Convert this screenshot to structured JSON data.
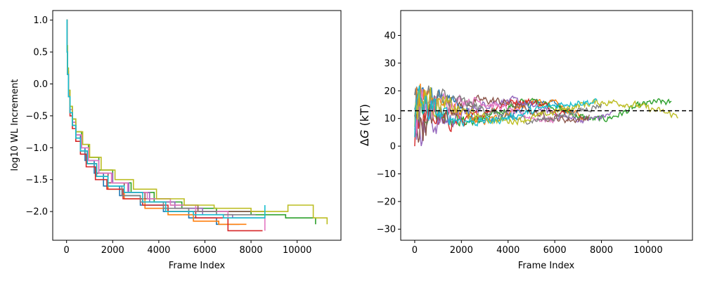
{
  "colors": [
    "#1f77b4",
    "#ff7f0e",
    "#2ca02c",
    "#d62728",
    "#9467bd",
    "#8c564b",
    "#e377c2",
    "#7f7f7f",
    "#bcbd22",
    "#17becf"
  ],
  "chart_data": [
    {
      "type": "line",
      "xlabel": "Frame Index",
      "ylabel": "log10 WL Increment",
      "xlim": [
        -600,
        11900
      ],
      "ylim": [
        -2.45,
        1.15
      ],
      "xticks": [
        0,
        2000,
        4000,
        6000,
        8000,
        10000
      ],
      "xtick_labels": [
        "0",
        "2000",
        "4000",
        "6000",
        "8000",
        "10000"
      ],
      "yticks": [
        1.0,
        0.5,
        0.0,
        -0.5,
        -1.0,
        -1.5,
        -2.0
      ],
      "ytick_labels": [
        "1.0",
        "0.5",
        "0.0",
        "−0.5",
        "−1.0",
        "−1.5",
        "−2.0"
      ],
      "series": [
        {
          "x": [
            0,
            20,
            40,
            80,
            150,
            250,
            400,
            600,
            800,
            1200,
            1600,
            2300,
            3200,
            4200,
            5300,
            6500,
            7500
          ],
          "y": [
            1.0,
            0.55,
            0.2,
            -0.15,
            -0.4,
            -0.6,
            -0.8,
            -1.0,
            -1.2,
            -1.4,
            -1.6,
            -1.75,
            -1.9,
            -2.0,
            -2.1,
            -2.2,
            -2.2
          ]
        },
        {
          "x": [
            0,
            20,
            40,
            80,
            150,
            250,
            400,
            600,
            900,
            1300,
            1800,
            2500,
            3400,
            4400,
            5500,
            6600,
            7800
          ],
          "y": [
            1.0,
            0.5,
            0.15,
            -0.2,
            -0.45,
            -0.65,
            -0.85,
            -1.05,
            -1.25,
            -1.45,
            -1.65,
            -1.8,
            -1.95,
            -2.05,
            -2.15,
            -2.2,
            -2.2
          ]
        },
        {
          "x": [
            0,
            20,
            40,
            80,
            150,
            250,
            400,
            650,
            950,
            1400,
            2000,
            2800,
            3800,
            5000,
            6500,
            8000,
            9500,
            10800
          ],
          "y": [
            1.0,
            0.6,
            0.25,
            -0.1,
            -0.35,
            -0.55,
            -0.75,
            -0.95,
            -1.15,
            -1.35,
            -1.55,
            -1.7,
            -1.85,
            -1.95,
            -2.0,
            -2.05,
            -2.1,
            -2.2
          ]
        },
        {
          "x": [
            0,
            20,
            40,
            80,
            150,
            250,
            400,
            600,
            850,
            1250,
            1750,
            2450,
            3300,
            4400,
            5600,
            7000,
            8500
          ],
          "y": [
            1.0,
            0.5,
            0.15,
            -0.2,
            -0.5,
            -0.7,
            -0.9,
            -1.1,
            -1.3,
            -1.5,
            -1.65,
            -1.8,
            -1.9,
            -2.0,
            -2.1,
            -2.3,
            -2.3
          ]
        },
        {
          "x": [
            0,
            20,
            40,
            80,
            150,
            250,
            400,
            650,
            950,
            1400,
            2000,
            2700,
            3600,
            4700,
            5900,
            7200,
            8600
          ],
          "y": [
            1.0,
            0.55,
            0.2,
            -0.15,
            -0.4,
            -0.6,
            -0.8,
            -1.0,
            -1.2,
            -1.4,
            -1.55,
            -1.7,
            -1.85,
            -1.95,
            -2.05,
            -2.1,
            -2.1
          ]
        },
        {
          "x": [
            0,
            20,
            40,
            80,
            150,
            250,
            400,
            600,
            900,
            1300,
            1800,
            2500,
            3400,
            4500,
            5700,
            7000,
            8600
          ],
          "y": [
            1.0,
            0.5,
            0.15,
            -0.2,
            -0.45,
            -0.65,
            -0.85,
            -1.05,
            -1.25,
            -1.4,
            -1.55,
            -1.7,
            -1.8,
            -1.9,
            -2.0,
            -2.0,
            -2.0
          ]
        },
        {
          "x": [
            0,
            20,
            40,
            80,
            150,
            250,
            400,
            650,
            950,
            1400,
            1950,
            2650,
            3500,
            4500,
            5600,
            7000,
            8600
          ],
          "y": [
            1.0,
            0.55,
            0.2,
            -0.15,
            -0.4,
            -0.6,
            -0.8,
            -1.0,
            -1.2,
            -1.4,
            -1.55,
            -1.7,
            -1.8,
            -1.9,
            -2.0,
            -2.1,
            -2.3
          ]
        },
        {
          "x": [
            0,
            20,
            40,
            80,
            150,
            250,
            400,
            600,
            900,
            1300,
            1800,
            2400,
            3200,
            4200,
            5300,
            6500,
            8200
          ],
          "y": [
            1.0,
            0.5,
            0.15,
            -0.2,
            -0.45,
            -0.65,
            -0.85,
            -1.05,
            -1.25,
            -1.45,
            -1.6,
            -1.75,
            -1.85,
            -1.95,
            -2.0,
            -2.05,
            -2.05
          ]
        },
        {
          "x": [
            0,
            20,
            40,
            80,
            150,
            250,
            400,
            700,
            1000,
            1500,
            2100,
            2900,
            3900,
            5100,
            6400,
            8000,
            9600,
            10700,
            11300
          ],
          "y": [
            1.0,
            0.6,
            0.25,
            -0.1,
            -0.35,
            -0.55,
            -0.75,
            -0.95,
            -1.15,
            -1.35,
            -1.5,
            -1.65,
            -1.8,
            -1.9,
            -1.95,
            -2.0,
            -1.9,
            -2.1,
            -2.2
          ]
        },
        {
          "x": [
            0,
            20,
            40,
            80,
            150,
            250,
            400,
            600,
            900,
            1300,
            1800,
            2500,
            3300,
            4300,
            5500,
            6800,
            8600
          ],
          "y": [
            1.0,
            0.5,
            0.15,
            -0.2,
            -0.45,
            -0.65,
            -0.85,
            -1.05,
            -1.25,
            -1.45,
            -1.6,
            -1.7,
            -1.85,
            -2.0,
            -2.05,
            -2.1,
            -1.9
          ]
        }
      ]
    },
    {
      "type": "line",
      "xlabel": "Frame Index",
      "ylabel_prefix": "Δ",
      "ylabel_italic": "G",
      "ylabel_suffix": " (kT)",
      "xlim": [
        -600,
        11900
      ],
      "ylim": [
        -34,
        49
      ],
      "xticks": [
        0,
        2000,
        4000,
        6000,
        8000,
        10000
      ],
      "xtick_labels": [
        "0",
        "2000",
        "4000",
        "6000",
        "8000",
        "10000"
      ],
      "yticks": [
        40,
        30,
        20,
        10,
        0,
        -10,
        -20,
        -30
      ],
      "ytick_labels": [
        "40",
        "30",
        "20",
        "10",
        "0",
        "−10",
        "−20",
        "−30"
      ],
      "reference_line_y": 12.8,
      "series_lengths": [
        6800,
        7200,
        11000,
        6500,
        8500,
        7500,
        6000,
        8000,
        11300,
        7800
      ]
    }
  ]
}
